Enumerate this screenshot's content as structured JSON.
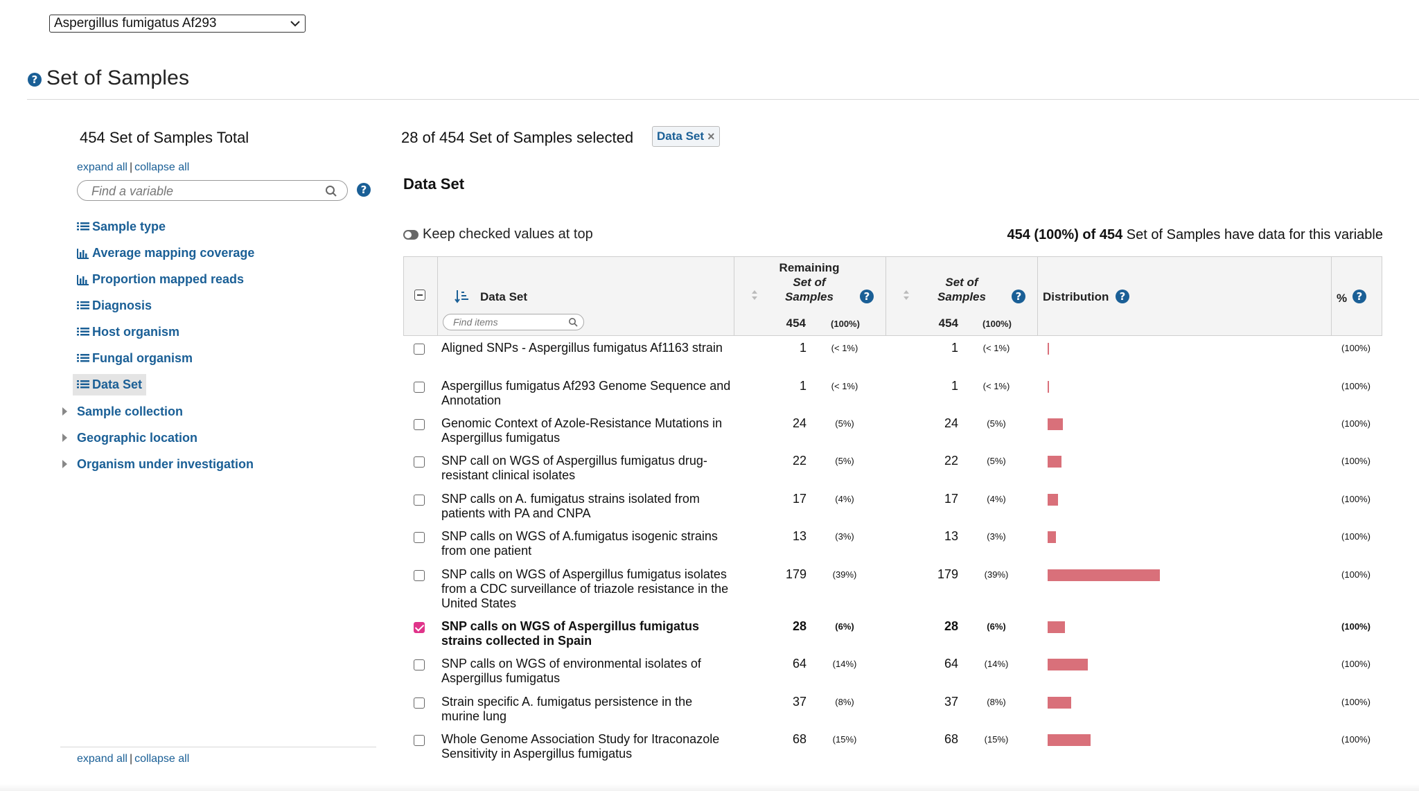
{
  "organism_select": {
    "value": "Aspergillus fumigatus Af293"
  },
  "page": {
    "title": "Set of Samples"
  },
  "left_panel": {
    "total": "454 Set of Samples Total",
    "expand_all": "expand all",
    "collapse_all": "collapse all",
    "separator": "|",
    "search_placeholder": "Find a variable",
    "items": [
      {
        "label": "Sample type",
        "icon": "list-icon"
      },
      {
        "label": "Average mapping coverage",
        "icon": "bar-chart-icon"
      },
      {
        "label": "Proportion mapped reads",
        "icon": "bar-chart-icon"
      },
      {
        "label": "Diagnosis",
        "icon": "list-icon"
      },
      {
        "label": "Host organism",
        "icon": "list-icon"
      },
      {
        "label": "Fungal organism",
        "icon": "list-icon"
      },
      {
        "label": "Data Set",
        "icon": "list-icon",
        "active": true
      }
    ],
    "groups": [
      {
        "label": "Sample collection"
      },
      {
        "label": "Geographic location"
      },
      {
        "label": "Organism under investigation"
      }
    ]
  },
  "main": {
    "selection_summary": "28 of 454 Set of Samples selected",
    "filter_chip": {
      "label": "Data Set",
      "close": "×"
    },
    "variable_title": "Data Set",
    "keep_checked_label": "Keep checked values at top",
    "coverage": {
      "bold": "454 (100%) of 454",
      "rest": " Set of Samples have data for this variable"
    },
    "table": {
      "headers": {
        "name": "Data Set",
        "find_placeholder": "Find items",
        "remaining_line1": "Remaining",
        "remaining_line2": "Set of",
        "remaining_line3": "Samples",
        "set_line1": "Set of",
        "set_line2": "Samples",
        "distribution": "Distribution",
        "percent": "%",
        "help": "?"
      },
      "totals": {
        "remaining": "454",
        "remaining_pct": "(100%)",
        "set": "454",
        "set_pct": "(100%)"
      },
      "rows": [
        {
          "label": "Aligned SNPs - Aspergillus fumigatus Af1163 strain",
          "remaining": "1",
          "remaining_pct": "(< 1%)",
          "count": "1",
          "count_pct": "(< 1%)",
          "fraction": 0.0022,
          "pct": "(100%)",
          "checked": false
        },
        {
          "label": "Aspergillus fumigatus Af293 Genome Sequence and Annotation",
          "remaining": "1",
          "remaining_pct": "(< 1%)",
          "count": "1",
          "count_pct": "(< 1%)",
          "fraction": 0.0022,
          "pct": "(100%)",
          "checked": false
        },
        {
          "label": "Genomic Context of Azole-Resistance Mutations in Aspergillus fumigatus",
          "remaining": "24",
          "remaining_pct": "(5%)",
          "count": "24",
          "count_pct": "(5%)",
          "fraction": 0.0529,
          "pct": "(100%)",
          "checked": false
        },
        {
          "label": "SNP call on WGS of Aspergillus fumigatus drug-resistant clinical isolates",
          "remaining": "22",
          "remaining_pct": "(5%)",
          "count": "22",
          "count_pct": "(5%)",
          "fraction": 0.0485,
          "pct": "(100%)",
          "checked": false
        },
        {
          "label": "SNP calls on A. fumigatus strains isolated from patients with PA and CNPA",
          "remaining": "17",
          "remaining_pct": "(4%)",
          "count": "17",
          "count_pct": "(4%)",
          "fraction": 0.0374,
          "pct": "(100%)",
          "checked": false
        },
        {
          "label": "SNP calls on WGS of A.fumigatus isogenic strains from one patient",
          "remaining": "13",
          "remaining_pct": "(3%)",
          "count": "13",
          "count_pct": "(3%)",
          "fraction": 0.0286,
          "pct": "(100%)",
          "checked": false
        },
        {
          "label": "SNP calls on WGS of Aspergillus fumigatus isolates from a CDC surveillance of triazole resistance in the United States",
          "remaining": "179",
          "remaining_pct": "(39%)",
          "count": "179",
          "count_pct": "(39%)",
          "fraction": 0.3943,
          "pct": "(100%)",
          "checked": false
        },
        {
          "label": "SNP calls on WGS of Aspergillus fumigatus strains collected in Spain",
          "remaining": "28",
          "remaining_pct": "(6%)",
          "count": "28",
          "count_pct": "(6%)",
          "fraction": 0.0617,
          "pct": "(100%)",
          "checked": true
        },
        {
          "label": "SNP calls on WGS of environmental isolates of Aspergillus fumigatus",
          "remaining": "64",
          "remaining_pct": "(14%)",
          "count": "64",
          "count_pct": "(14%)",
          "fraction": 0.141,
          "pct": "(100%)",
          "checked": false
        },
        {
          "label": "Strain specific A. fumigatus persistence in the murine lung",
          "remaining": "37",
          "remaining_pct": "(8%)",
          "count": "37",
          "count_pct": "(8%)",
          "fraction": 0.0815,
          "pct": "(100%)",
          "checked": false
        },
        {
          "label": "Whole Genome Association Study for Itraconazole Sensitivity in Aspergillus fumigatus",
          "remaining": "68",
          "remaining_pct": "(15%)",
          "count": "68",
          "count_pct": "(15%)",
          "fraction": 0.1498,
          "pct": "(100%)",
          "checked": false
        }
      ]
    }
  },
  "colors": {
    "link": "#1a5f96",
    "bar": "#d9707a",
    "checked": "#e0348a"
  }
}
